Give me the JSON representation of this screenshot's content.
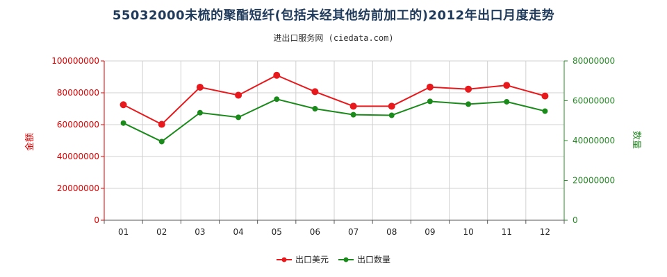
{
  "chart_data": {
    "type": "line",
    "title": "55032000未梳的聚酯短纤(包括未经其他纺前加工的)2012年出口月度走势",
    "subtitle": "进出口服务网 (ciedata.com)",
    "categories": [
      "01",
      "02",
      "03",
      "04",
      "05",
      "06",
      "07",
      "08",
      "09",
      "10",
      "11",
      "12"
    ],
    "ylabel_left": "金额",
    "ylabel_right": "数量",
    "ylim_left": [
      0,
      100000000
    ],
    "ylim_right": [
      0,
      80000000
    ],
    "yticks_left": [
      "0",
      "20000000",
      "40000000",
      "60000000",
      "80000000",
      "100000000"
    ],
    "yticks_right": [
      "0",
      "20000000",
      "40000000",
      "60000000",
      "80000000"
    ],
    "series": [
      {
        "name": "出口美元",
        "axis": "left",
        "color": "#e8191c",
        "values": [
          72500000,
          60200000,
          83500000,
          78500000,
          91000000,
          80700000,
          71600000,
          71600000,
          83600000,
          82300000,
          84700000,
          78000000
        ]
      },
      {
        "name": "出口数量",
        "axis": "right",
        "color": "#1a8a1a",
        "values": [
          48800000,
          39500000,
          54000000,
          51700000,
          60800000,
          56000000,
          53000000,
          52700000,
          59700000,
          58300000,
          59500000,
          54800000
        ]
      }
    ],
    "grid": true,
    "legend_position": "bottom-center",
    "watermark": "进出口服务网"
  }
}
